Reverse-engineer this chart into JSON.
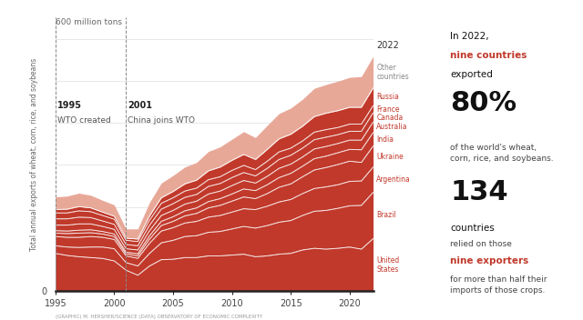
{
  "years": [
    1995,
    1996,
    1997,
    1998,
    1999,
    2000,
    2001,
    2002,
    2003,
    2004,
    2005,
    2006,
    2007,
    2008,
    2009,
    2010,
    2011,
    2012,
    2013,
    2014,
    2015,
    2016,
    2017,
    2018,
    2019,
    2020,
    2021,
    2022
  ],
  "series": {
    "United States": [
      90,
      85,
      82,
      80,
      78,
      72,
      50,
      38,
      60,
      75,
      76,
      80,
      80,
      84,
      84,
      86,
      88,
      82,
      84,
      88,
      90,
      98,
      102,
      100,
      102,
      105,
      100,
      125
    ],
    "Brazil": [
      18,
      20,
      22,
      25,
      27,
      29,
      18,
      22,
      30,
      40,
      45,
      50,
      52,
      56,
      58,
      62,
      66,
      68,
      72,
      76,
      78,
      82,
      88,
      92,
      95,
      98,
      104,
      110
    ],
    "Argentina": [
      22,
      23,
      24,
      25,
      23,
      22,
      16,
      18,
      24,
      28,
      30,
      32,
      34,
      36,
      38,
      40,
      42,
      44,
      46,
      48,
      50,
      52,
      54,
      56,
      56,
      58,
      58,
      60
    ],
    "Ukraine": [
      8,
      9,
      10,
      9,
      8,
      7,
      5,
      6,
      10,
      13,
      15,
      17,
      19,
      22,
      24,
      26,
      28,
      26,
      30,
      35,
      37,
      40,
      44,
      46,
      48,
      48,
      44,
      50
    ],
    "India": [
      6,
      6,
      7,
      7,
      6,
      6,
      4,
      5,
      8,
      10,
      11,
      12,
      13,
      15,
      16,
      17,
      19,
      19,
      21,
      23,
      25,
      25,
      27,
      27,
      28,
      28,
      30,
      32
    ],
    "Australia": [
      13,
      14,
      15,
      14,
      12,
      11,
      8,
      9,
      12,
      14,
      15,
      16,
      16,
      18,
      18,
      20,
      20,
      18,
      20,
      22,
      22,
      22,
      23,
      23,
      22,
      22,
      23,
      25
    ],
    "Canada": [
      15,
      15,
      16,
      15,
      13,
      12,
      10,
      10,
      13,
      15,
      16,
      16,
      16,
      18,
      18,
      19,
      19,
      17,
      19,
      21,
      21,
      21,
      22,
      22,
      21,
      21,
      21,
      22
    ],
    "France": [
      14,
      14,
      15,
      14,
      13,
      12,
      10,
      10,
      12,
      14,
      14,
      15,
      15,
      16,
      16,
      17,
      17,
      15,
      17,
      18,
      17,
      17,
      18,
      18,
      17,
      17,
      17,
      17
    ],
    "Russia": [
      8,
      9,
      10,
      9,
      8,
      7,
      5,
      6,
      10,
      13,
      15,
      17,
      19,
      21,
      23,
      24,
      26,
      24,
      28,
      31,
      33,
      35,
      37,
      39,
      40,
      40,
      40,
      42
    ],
    "Other countries": [
      30,
      31,
      32,
      30,
      28,
      27,
      22,
      24,
      32,
      35,
      38,
      40,
      42,
      46,
      48,
      50,
      54,
      52,
      57,
      60,
      62,
      64,
      67,
      68,
      70,
      71,
      73,
      75
    ]
  },
  "order": [
    "United States",
    "Brazil",
    "Argentina",
    "Ukraine",
    "India",
    "Australia",
    "Canada",
    "France",
    "Russia",
    "Other countries"
  ],
  "dark_red": "#C0392B",
  "other_color": "#E8A898",
  "line_color": "#FFFFFF",
  "bg_color": "#FFFFFF",
  "ylabel": "Total annual exports of wheat, corn, rice, and soybeans",
  "xlabel_bottom": "(GRAPHIC) M. HERSHER/SCIENCE (DATA) OBSERVATORY OF ECONOMIC COMPLEXITY",
  "country_labels": {
    "United States": "United\nStates",
    "Brazil": "Brazil",
    "Argentina": "Argentina",
    "Ukraine": "Ukraine",
    "India": "India",
    "Australia": "Australia",
    "Canada": "Canada",
    "France": "France",
    "Russia": "Russia",
    "Other countries": "Other\ncountries"
  },
  "label_colors": {
    "United States": "#C0392B",
    "Brazil": "#C0392B",
    "Argentina": "#C0392B",
    "Ukraine": "#C0392B",
    "India": "#C0392B",
    "Australia": "#C0392B",
    "Canada": "#C0392B",
    "France": "#C0392B",
    "Russia": "#C0392B",
    "Other countries": "#888888"
  }
}
